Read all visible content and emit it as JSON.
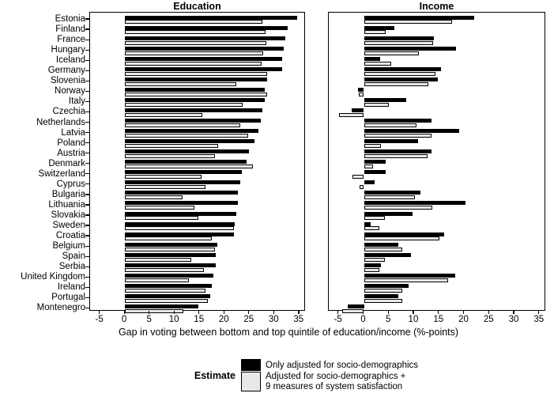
{
  "axis": {
    "title": "Gap in voting between bottom and top quintile of education/income (%-points)"
  },
  "legend": {
    "title": "Estimate",
    "items": [
      {
        "label": "Only adjusted for socio-demographics",
        "color": "#000000"
      },
      {
        "label": "Adjusted for socio-demographics +\n9 measures of system satisfaction",
        "color": "#E8E8E8"
      }
    ]
  },
  "chart_data": {
    "type": "bar",
    "orientation": "horizontal",
    "title": "",
    "xlabel": "Gap in voting between bottom and top quintile of education/income (%-points)",
    "ylabel": "",
    "xticks": [
      -5,
      0,
      5,
      10,
      15,
      20,
      25,
      30,
      35
    ],
    "xlim": [
      -7,
      36.3
    ],
    "grid": false,
    "legend_position": "bottom",
    "legend_title": "Estimate",
    "colors": {
      "series0": "#000000",
      "series1": "#E8E8E8"
    },
    "categories": [
      "Estonia",
      "Finland",
      "France",
      "Hungary",
      "Iceland",
      "Germany",
      "Slovenia",
      "Norway",
      "Italy",
      "Czechia",
      "Netherlands",
      "Latvia",
      "Poland",
      "Austria",
      "Denmark",
      "Switzerland",
      "Cyprus",
      "Bulgaria",
      "Lithuania",
      "Slovakia",
      "Sweden",
      "Croatia",
      "Belgium",
      "Spain",
      "Serbia",
      "United Kingdom",
      "Ireland",
      "Portugal",
      "Montenegro"
    ],
    "panels": [
      {
        "title": "Education",
        "series": [
          {
            "name": "Only adjusted for socio-demographics",
            "values": [
              34.6,
              32.7,
              32.2,
              31.8,
              31.5,
              31.5,
              28.6,
              28.1,
              28.1,
              27.6,
              27.3,
              26.8,
              26.0,
              24.9,
              24.4,
              23.5,
              23.2,
              22.7,
              22.6,
              22.3,
              22.0,
              21.9,
              18.6,
              18.3,
              18.2,
              17.8,
              17.4,
              17.2,
              14.7
            ]
          },
          {
            "name": "Adjusted for socio-demographics + 9 measures of system satisfaction",
            "values": [
              27.6,
              28.3,
              28.4,
              27.7,
              27.4,
              28.6,
              22.3,
              28.6,
              23.7,
              15.6,
              23.2,
              24.8,
              18.7,
              18.1,
              25.7,
              15.3,
              16.2,
              11.6,
              13.9,
              14.8,
              21.9,
              17.5,
              18.0,
              13.3,
              15.8,
              12.8,
              16.2,
              16.6,
              11.8
            ]
          }
        ]
      },
      {
        "title": "Income",
        "series": [
          {
            "name": "Only adjusted for socio-demographics",
            "values": [
              21.9,
              6.0,
              14.0,
              18.4,
              3.2,
              15.3,
              14.7,
              -1.2,
              8.4,
              -2.5,
              13.4,
              19.0,
              10.8,
              13.4,
              4.3,
              4.3,
              2.1,
              11.2,
              20.3,
              9.6,
              1.4,
              16.0,
              6.8,
              9.4,
              3.3,
              18.1,
              8.9,
              6.8,
              -3.3
            ]
          },
          {
            "name": "Adjusted for socio-demographics + 9 measures of system satisfaction",
            "values": [
              17.6,
              4.3,
              13.7,
              10.9,
              5.5,
              14.3,
              12.9,
              -1.0,
              5.0,
              -5.0,
              10.4,
              13.5,
              3.4,
              12.6,
              1.8,
              -2.3,
              -0.8,
              10.1,
              13.6,
              4.1,
              3.0,
              15.0,
              7.7,
              4.2,
              3.0,
              16.7,
              7.6,
              7.7,
              -4.4
            ]
          }
        ]
      }
    ]
  }
}
